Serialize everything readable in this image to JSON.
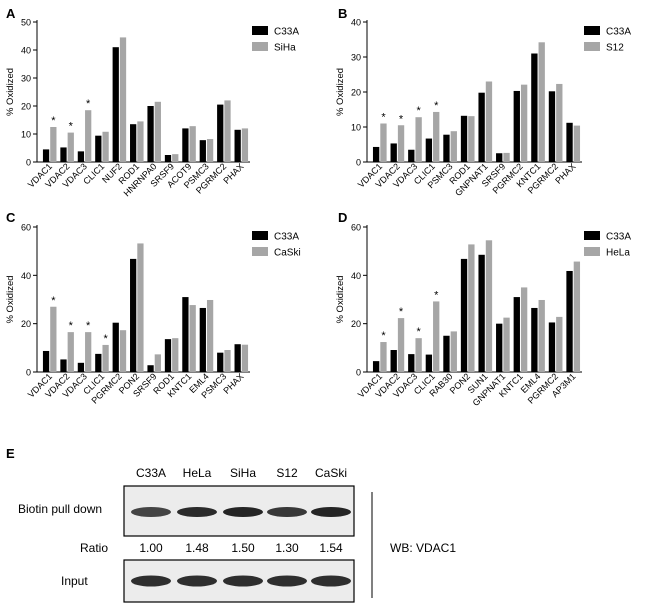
{
  "colors": {
    "black_series": "#000000",
    "gray_series": "#a6a6a6",
    "axis": "#000000",
    "blot_band": "#1a1a1a",
    "blot_bg": "#ececec"
  },
  "chart_data": [
    {
      "panel": "A",
      "type": "bar",
      "ylabel": "% Oxidized",
      "ylim": [
        0,
        50
      ],
      "yticks": [
        0,
        10,
        20,
        30,
        40,
        50
      ],
      "categories": [
        "VDAC1",
        "VDAC2",
        "VDAC3",
        "CLIC1",
        "NUF2",
        "ROD1",
        "HNRNPA0",
        "SRSF9",
        "ACOT9",
        "PSMC3",
        "PGRMC2",
        "PHAX"
      ],
      "series": [
        {
          "name": "C33A",
          "values": [
            4.5,
            5.2,
            3.8,
            9.4,
            41,
            13.5,
            20,
            2.5,
            12,
            7.8,
            20.5,
            11.5
          ]
        },
        {
          "name": "SiHa",
          "values": [
            12.5,
            10.5,
            18.5,
            10.8,
            44.5,
            14.5,
            21.5,
            2.8,
            12.8,
            8.2,
            22,
            12
          ]
        }
      ],
      "annotations": [
        "*",
        "*",
        "*",
        "",
        "",
        "",
        "",
        "",
        "",
        "",
        "",
        ""
      ],
      "legend": "top-right"
    },
    {
      "panel": "B",
      "type": "bar",
      "ylabel": "% Oxidized",
      "ylim": [
        0,
        40
      ],
      "yticks": [
        0,
        10,
        20,
        30,
        40
      ],
      "categories": [
        "VDAC1",
        "VDAC2",
        "VDAC3",
        "CLIC1",
        "PSMC3",
        "ROD1",
        "GNPNAT1",
        "SRSF9",
        "PGRMC2",
        "KNTC1",
        "PGRMC2",
        "PHAX"
      ],
      "series": [
        {
          "name": "C33A",
          "values": [
            4.3,
            5.3,
            3.5,
            6.7,
            7.8,
            13.2,
            19.8,
            2.5,
            20.3,
            31,
            20.2,
            11.2
          ]
        },
        {
          "name": "S12",
          "values": [
            11,
            10.5,
            12.8,
            14.3,
            8.8,
            13.1,
            23,
            2.6,
            22.1,
            34.2,
            22.3,
            10.4
          ]
        }
      ],
      "annotations": [
        "*",
        "*",
        "*",
        "*",
        "",
        "",
        "",
        "",
        "",
        "",
        "",
        ""
      ],
      "legend": "top-right"
    },
    {
      "panel": "C",
      "type": "bar",
      "ylabel": "% Oxidized",
      "ylim": [
        0,
        60
      ],
      "yticks": [
        0,
        20,
        40,
        60
      ],
      "categories": [
        "VDAC1",
        "VDAC2",
        "VDAC3",
        "CLIC1",
        "PGRMC2",
        "PON2",
        "SRSF9",
        "ROD1",
        "KNTC1",
        "EML4",
        "PSMC3",
        "PHAX"
      ],
      "series": [
        {
          "name": "C33A",
          "values": [
            8.7,
            5.2,
            3.8,
            7.5,
            20.4,
            46.8,
            2.8,
            13.6,
            31,
            26.5,
            8,
            11.5
          ]
        },
        {
          "name": "CaSki",
          "values": [
            27,
            16.5,
            16.5,
            11.2,
            17.3,
            53.2,
            7.3,
            14,
            27.7,
            29.8,
            9.1,
            11.3
          ]
        }
      ],
      "annotations": [
        "*",
        "*",
        "*",
        "*",
        "",
        "",
        "",
        "",
        "",
        "",
        "",
        ""
      ],
      "legend": "top-right"
    },
    {
      "panel": "D",
      "type": "bar",
      "ylabel": "% Oxidized",
      "ylim": [
        0,
        60
      ],
      "yticks": [
        0,
        20,
        40,
        60
      ],
      "categories": [
        "VDAC1",
        "VDAC2",
        "VDAC3",
        "CLIC1",
        "RAB30",
        "PON2",
        "SUN1",
        "GNPNAT1",
        "KNTC1",
        "EML4",
        "PGRMC2",
        "AP3M1"
      ],
      "series": [
        {
          "name": "C33A",
          "values": [
            4.5,
            9.1,
            7.4,
            7.2,
            15,
            46.8,
            48.5,
            20,
            31,
            26.5,
            20.5,
            41.8
          ]
        },
        {
          "name": "HeLa",
          "values": [
            12.4,
            22.3,
            14,
            29.2,
            16.8,
            52.8,
            54.5,
            22.5,
            35,
            29.8,
            22.8,
            45.7
          ]
        }
      ],
      "annotations": [
        "*",
        "*",
        "*",
        "*",
        "",
        "",
        "",
        "",
        "",
        "",
        "",
        ""
      ],
      "legend": "top-right"
    }
  ],
  "panel_e": {
    "label": "E",
    "lanes": [
      "C33A",
      "HeLa",
      "SiHa",
      "S12",
      "CaSki"
    ],
    "row_labels": {
      "top": "Biotin pull down",
      "ratio": "Ratio",
      "bottom": "Input"
    },
    "ratios": [
      "1.00",
      "1.48",
      "1.50",
      "1.30",
      "1.54"
    ],
    "band_intensity": [
      0.8,
      0.92,
      0.95,
      0.86,
      0.95
    ],
    "wb_label": "WB: VDAC1"
  }
}
